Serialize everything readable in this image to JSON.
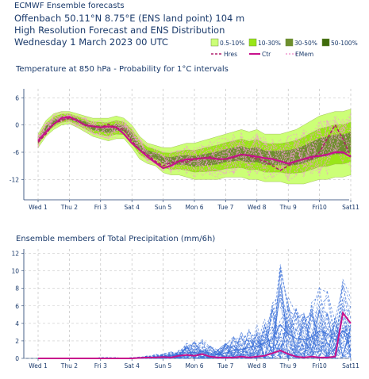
{
  "header": {
    "line1": "ECMWF Ensemble forecasts",
    "line2": "Offenbach 50.11°N 8.75°E (ENS land point) 104 m",
    "line3": "High Resolution Forecast and ENS Distribution",
    "line4": "Wednesday  1 March 2023 00 UTC"
  },
  "legend": {
    "prob": [
      {
        "label": "0.5-10%",
        "color": "#ccff77"
      },
      {
        "label": "10-30%",
        "color": "#99e619"
      },
      {
        "label": "30-50%",
        "color": "#6e8f2e"
      },
      {
        "label": "50-100%",
        "color": "#3f6b0c"
      }
    ],
    "lines": [
      {
        "label": "Hres",
        "color": "#b0206e"
      },
      {
        "label": "Ctr",
        "color": "#c8108c"
      },
      {
        "label": "EMem",
        "color": "#f09ad0"
      }
    ]
  },
  "colors": {
    "weekend": "#e02020",
    "axis": "#1a3a6b",
    "precip_members": "#3a6fd8"
  },
  "chart_data": [
    {
      "type": "area",
      "title": "Temperature at 850 hPa - Probability for 1°C intervals",
      "x_dates": [
        "Wed 1",
        "Thu 2",
        "Fri 3",
        "Sat 4",
        "Sun 5",
        "Mon 6",
        "Tue 7",
        "Wed 8",
        "Thu 9",
        "Fri10",
        "Sat11"
      ],
      "weekend_labels": [
        "Sun 5"
      ],
      "yticks": [
        6,
        0,
        -6,
        -12
      ],
      "ylim": [
        -16.5,
        8
      ],
      "x_days": [
        0,
        0.25,
        0.5,
        0.75,
        1,
        1.25,
        1.5,
        1.75,
        2,
        2.25,
        2.5,
        2.75,
        3,
        3.25,
        3.5,
        3.75,
        4,
        4.25,
        4.5,
        4.75,
        5,
        5.25,
        5.5,
        5.75,
        6,
        6.25,
        6.5,
        6.75,
        7,
        7.25,
        7.5,
        7.75,
        8,
        8.25,
        8.5,
        8.75,
        9,
        9.25,
        9.5,
        9.75,
        10
      ],
      "ens_low": [
        -5,
        -2.5,
        -1,
        0,
        0.3,
        -0.5,
        -1.5,
        -2.5,
        -3,
        -3.5,
        -3,
        -3,
        -5,
        -7.5,
        -8.5,
        -9,
        -10.5,
        -11,
        -11,
        -11.5,
        -12,
        -12,
        -12,
        -12,
        -11.5,
        -11.5,
        -11.5,
        -12,
        -12,
        -12.5,
        -12.5,
        -12.5,
        -13,
        -13,
        -13,
        -12.5,
        -12,
        -12,
        -11.5,
        -11.5,
        -11
      ],
      "ens_high": [
        -2,
        1,
        2.5,
        3,
        3,
        2.5,
        2,
        1.5,
        1.5,
        1.5,
        2,
        1.5,
        0,
        -2.5,
        -4,
        -4.5,
        -5,
        -5,
        -4.5,
        -4,
        -4,
        -3.5,
        -3,
        -2.5,
        -2,
        -1.5,
        -1,
        -1.5,
        -1,
        -2,
        -2,
        -2,
        -1.5,
        -1,
        0,
        1,
        2,
        2.5,
        3,
        3,
        3.5
      ],
      "hres": [
        -3.8,
        -2,
        0.3,
        1,
        1.5,
        1,
        0,
        -0.3,
        -0.5,
        0.2,
        -0.6,
        -1,
        -3.5,
        -5.5,
        -6.5,
        -8,
        -9,
        -8.3,
        -8,
        -8.2,
        -7.5,
        -7.3,
        -7,
        -7.5,
        -7.5,
        -7.2,
        -6.5,
        -6.8,
        -7.5,
        -8,
        -9,
        -10,
        -9,
        -8,
        -7.5,
        -7.5,
        -6,
        -3,
        0,
        -3,
        -7
      ],
      "ctr": [
        -3.5,
        -1.5,
        0.2,
        1.5,
        1.8,
        1,
        0,
        -0.3,
        -0.5,
        -0.3,
        -0.5,
        -2,
        -4,
        -5.5,
        -7,
        -8.3,
        -9.5,
        -9,
        -8,
        -7.6,
        -7.5,
        -7.3,
        -7.3,
        -7.5,
        -7.5,
        -7,
        -6.5,
        -6.7,
        -7,
        -7.3,
        -7.5,
        -8,
        -8.5,
        -8,
        -7.5,
        -7,
        -6.8,
        -6.5,
        -6,
        -6,
        -7
      ]
    },
    {
      "type": "line",
      "title": "Ensemble members of Total Precipitation (mm/6h)",
      "x_dates": [
        "Wed 1",
        "Thu 2",
        "Fri 3",
        "Sat 4",
        "Sun 5",
        "Mon 6",
        "Tue 7",
        "Wed 8",
        "Thu 9",
        "Fri10",
        "Sat11"
      ],
      "weekend_labels": [
        "Sun 5"
      ],
      "yticks": [
        0,
        2,
        4,
        6,
        8,
        10,
        12
      ],
      "ylim": [
        0,
        12.5
      ],
      "x_days": [
        0,
        0.25,
        0.5,
        0.75,
        1,
        1.25,
        1.5,
        1.75,
        2,
        2.25,
        2.5,
        2.75,
        3,
        3.25,
        3.5,
        3.75,
        4,
        4.25,
        4.5,
        4.75,
        5,
        5.25,
        5.5,
        5.75,
        6,
        6.25,
        6.5,
        6.75,
        7,
        7.25,
        7.5,
        7.75,
        8,
        8.25,
        8.5,
        8.75,
        9,
        9.25,
        9.5,
        9.75,
        10
      ],
      "members_envelope": [
        0,
        0,
        0,
        0,
        0,
        0,
        0,
        0,
        0.1,
        0.1,
        0.1,
        0,
        0.1,
        0.2,
        0.3,
        0.5,
        0.6,
        0.8,
        1.2,
        1.8,
        2,
        2.2,
        1.5,
        1.2,
        1.8,
        2.5,
        3,
        3.5,
        4,
        5,
        6.5,
        11,
        8,
        6.5,
        6,
        7,
        9,
        8,
        6,
        9,
        7
      ],
      "hres": [
        0,
        0,
        0,
        0,
        0,
        0,
        0,
        0,
        0,
        0,
        0,
        0,
        0,
        0.05,
        0.1,
        0.1,
        0.15,
        0.1,
        0.3,
        0.4,
        0.3,
        0.5,
        0.2,
        0.1,
        0.1,
        0.1,
        0.2,
        0.1,
        0.2,
        0.3,
        0.6,
        0.9,
        0.5,
        0.2,
        0.1,
        0.2,
        0.1,
        0.1,
        0.2,
        5.2,
        4
      ]
    }
  ]
}
